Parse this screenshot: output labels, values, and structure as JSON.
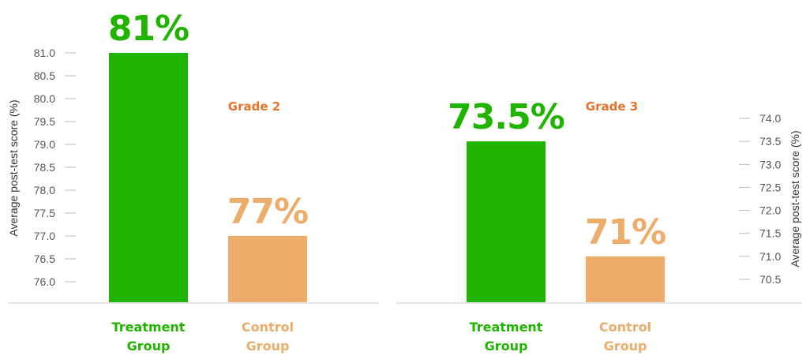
{
  "colors": {
    "treatment": "#20b400",
    "control_bar": "#edac6a",
    "control_text": "#edac6a",
    "grade_title": "#e5732a",
    "axis": "#cccccc",
    "tick": "#bbbbbb"
  },
  "chart_data": [
    {
      "type": "bar",
      "title": "Grade 2",
      "ylabel": "Average post-test score (%)",
      "axis_side": "left",
      "ylim": [
        75.5,
        81.3
      ],
      "yticks": [
        76.0,
        76.5,
        77.0,
        77.5,
        78.0,
        78.5,
        79.0,
        79.5,
        80.0,
        80.5,
        81.0
      ],
      "ytick_labels": [
        "76.0",
        "76.5",
        "77.0",
        "77.5",
        "78.0",
        "78.5",
        "79.0",
        "79.5",
        "80.0",
        "80.5",
        "81.0"
      ],
      "categories": [
        "Treatment Group",
        "Control Group"
      ],
      "category_lines": [
        [
          "Treatment",
          "Group"
        ],
        [
          "Control",
          "Group"
        ]
      ],
      "values": [
        81,
        77
      ],
      "value_labels": [
        "81%",
        "77%"
      ]
    },
    {
      "type": "bar",
      "title": "Grade 3",
      "ylabel": "Average post-test score (%)",
      "axis_side": "right",
      "ylim": [
        70.0,
        74.8
      ],
      "yticks": [
        70.5,
        71.0,
        71.5,
        72.0,
        72.5,
        73.0,
        73.5,
        74.0
      ],
      "ytick_labels": [
        "70.5",
        "71.0",
        "71.5",
        "72.0",
        "72.5",
        "73.0",
        "73.5",
        "74.0"
      ],
      "categories": [
        "Treatment Group",
        "Control Group"
      ],
      "category_lines": [
        [
          "Treatment",
          "Group"
        ],
        [
          "Control",
          "Group"
        ]
      ],
      "values": [
        73.5,
        71
      ],
      "value_labels": [
        "73.5%",
        "71%"
      ]
    }
  ]
}
